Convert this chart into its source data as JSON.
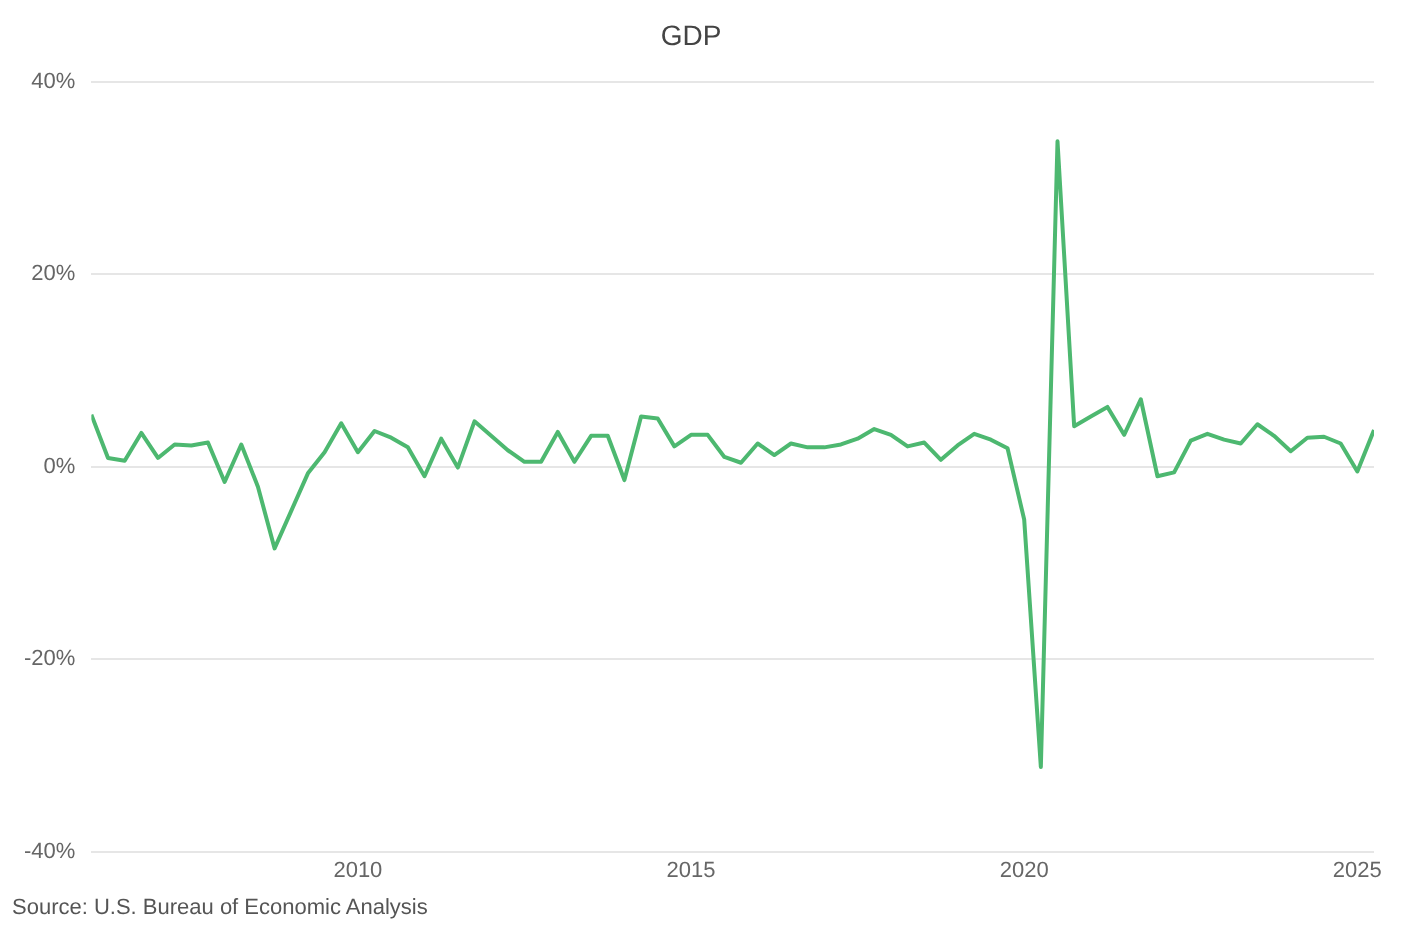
{
  "chart_data": {
    "type": "line",
    "title": "GDP",
    "x": [
      "2006-01",
      "2006-04",
      "2006-07",
      "2006-10",
      "2007-01",
      "2007-04",
      "2007-07",
      "2007-10",
      "2008-01",
      "2008-04",
      "2008-07",
      "2008-10",
      "2009-01",
      "2009-04",
      "2009-07",
      "2009-10",
      "2010-01",
      "2010-04",
      "2010-07",
      "2010-10",
      "2011-01",
      "2011-04",
      "2011-07",
      "2011-10",
      "2012-01",
      "2012-04",
      "2012-07",
      "2012-10",
      "2013-01",
      "2013-04",
      "2013-07",
      "2013-10",
      "2014-01",
      "2014-04",
      "2014-07",
      "2014-10",
      "2015-01",
      "2015-04",
      "2015-07",
      "2015-10",
      "2016-01",
      "2016-04",
      "2016-07",
      "2016-10",
      "2017-01",
      "2017-04",
      "2017-07",
      "2017-10",
      "2018-01",
      "2018-04",
      "2018-07",
      "2018-10",
      "2019-01",
      "2019-04",
      "2019-07",
      "2019-10",
      "2020-01",
      "2020-04",
      "2020-07",
      "2020-10",
      "2021-01",
      "2021-04",
      "2021-07",
      "2021-10",
      "2022-01",
      "2022-04",
      "2022-07",
      "2022-10",
      "2023-01",
      "2023-04",
      "2023-07",
      "2023-10",
      "2024-01",
      "2024-04",
      "2024-07",
      "2024-10",
      "2025-01",
      "2025-04"
    ],
    "series": [
      {
        "color": "#4db870",
        "values": [
          5.4,
          0.9,
          0.6,
          3.5,
          0.9,
          2.3,
          2.2,
          2.5,
          -1.6,
          2.3,
          -2.1,
          -8.5,
          -4.6,
          -0.7,
          1.5,
          4.5,
          1.5,
          3.7,
          3.0,
          2.0,
          -1.0,
          2.9,
          -0.1,
          4.7,
          3.2,
          1.7,
          0.5,
          0.5,
          3.6,
          0.5,
          3.2,
          3.2,
          -1.4,
          5.2,
          5.0,
          2.1,
          3.3,
          3.3,
          1.0,
          0.4,
          2.4,
          1.2,
          2.4,
          2.0,
          2.0,
          2.3,
          2.9,
          3.9,
          3.3,
          2.1,
          2.5,
          0.7,
          2.2,
          3.4,
          2.8,
          1.9,
          -5.5,
          -31.2,
          33.8,
          4.2,
          5.2,
          6.2,
          3.3,
          7.0,
          -1.0,
          -0.6,
          2.7,
          3.4,
          2.8,
          2.4,
          4.4,
          3.2,
          1.6,
          3.0,
          3.1,
          2.4,
          -0.5,
          3.8
        ]
      }
    ],
    "xlim": [
      "2006-01",
      "2025-04"
    ],
    "xticks": [
      "2010",
      "2015",
      "2020",
      "2025"
    ],
    "ylim": [
      -40,
      40
    ],
    "yticks": [
      {
        "value": -40,
        "label": "-40%"
      },
      {
        "value": -20,
        "label": "-20%"
      },
      {
        "value": 0,
        "label": "0%"
      },
      {
        "value": 20,
        "label": "20%"
      },
      {
        "value": 40,
        "label": "40%"
      }
    ],
    "grid": "y",
    "legend": false,
    "marker": "none",
    "line_style": "solid",
    "annotations": [
      "Source: U.S. Bureau of Economic Analysis"
    ]
  }
}
